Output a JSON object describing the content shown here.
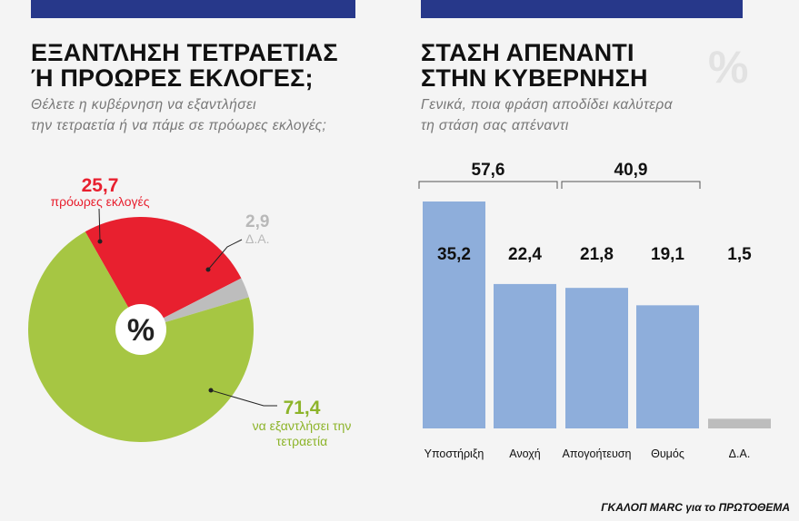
{
  "left_panel": {
    "title_line1": "ΕΞΑΝΤΛΗΣΗ ΤΕΤΡΑΕΤΙΑΣ",
    "title_line2": "Ή ΠΡΟΩΡΕΣ ΕΚΛΟΓΕΣ;",
    "subtitle_line1": "Θέλετε η κυβέρνηση να εξαντλήσει",
    "subtitle_line2": "την τετραετία ή να πάμε σε πρόωρες εκλογές;",
    "center_symbol": "%"
  },
  "right_panel": {
    "title_line1": "ΣΤΑΣΗ ΑΠΕΝΑΝΤΙ",
    "title_line2": "ΣΤΗΝ ΚΥΒΕΡΝΗΣΗ",
    "subtitle_line1": "Γενικά, ποια φράση αποδίδει καλύτερα",
    "subtitle_line2": "τη στάση σας απέναντι",
    "watermark_symbol": "%"
  },
  "source": "ΓΚΑΛΟΠ MARC για το ΠΡΩΤΟΘΕΜΑ",
  "colors": {
    "topbar": "#27388a",
    "green": "#a6c643",
    "red": "#e8202f",
    "grey": "#bdbdbd",
    "bar_blue": "#8eaedb",
    "green_text": "#8db42a",
    "red_text": "#e8202f",
    "grey_text": "#b8b8b8"
  },
  "chart_data": [
    {
      "type": "pie",
      "slices": [
        {
          "value": 71.4,
          "value_label": "71,4",
          "label_line1": "να εξαντλήσει την",
          "label_line2": "τετραετία",
          "color": "#a6c643",
          "text_color": "#8db42a"
        },
        {
          "value": 25.7,
          "value_label": "25,7",
          "label_line1": "πρόωρες εκλογές",
          "label_line2": "",
          "color": "#e8202f",
          "text_color": "#e8202f"
        },
        {
          "value": 2.9,
          "value_label": "2,9",
          "label_line1": "Δ.Α.",
          "label_line2": "",
          "color": "#bdbdbd",
          "text_color": "#b8b8b8"
        }
      ]
    },
    {
      "type": "bar",
      "categories": [
        "Υποστήριξη",
        "Ανοχή",
        "Απογοήτευση",
        "Θυμός",
        "Δ.Α."
      ],
      "values": [
        35.2,
        22.4,
        21.8,
        19.1,
        1.5
      ],
      "value_labels": [
        "35,2",
        "22,4",
        "21,8",
        "19,1",
        "1,5"
      ],
      "bar_colors": [
        "#8eaedb",
        "#8eaedb",
        "#8eaedb",
        "#8eaedb",
        "#bdbdbd"
      ],
      "ylim": [
        0,
        35.2
      ],
      "groups": [
        {
          "label": "57,6",
          "from": 0,
          "to": 1
        },
        {
          "label": "40,9",
          "from": 2,
          "to": 3
        }
      ]
    }
  ]
}
